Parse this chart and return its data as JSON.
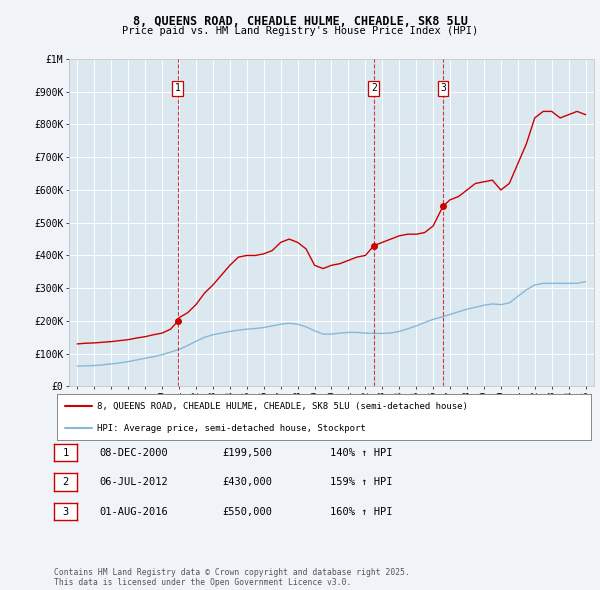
{
  "title": "8, QUEENS ROAD, CHEADLE HULME, CHEADLE, SK8 5LU",
  "subtitle": "Price paid vs. HM Land Registry's House Price Index (HPI)",
  "red_label": "8, QUEENS ROAD, CHEADLE HULME, CHEADLE, SK8 5LU (semi-detached house)",
  "blue_label": "HPI: Average price, semi-detached house, Stockport",
  "footer": "Contains HM Land Registry data © Crown copyright and database right 2025.\nThis data is licensed under the Open Government Licence v3.0.",
  "purchase_events": [
    {
      "label": "1",
      "date": 2000.92,
      "price": 199500,
      "date_str": "08-DEC-2000",
      "price_str": "£199,500",
      "hpi_str": "140% ↑ HPI"
    },
    {
      "label": "2",
      "date": 2012.5,
      "price": 430000,
      "date_str": "06-JUL-2012",
      "price_str": "£430,000",
      "hpi_str": "159% ↑ HPI"
    },
    {
      "label": "3",
      "date": 2016.58,
      "price": 550000,
      "date_str": "01-AUG-2016",
      "price_str": "£550,000",
      "hpi_str": "160% ↑ HPI"
    }
  ],
  "red_line": {
    "x": [
      1995.0,
      1995.5,
      1996.0,
      1996.5,
      1997.0,
      1997.5,
      1998.0,
      1998.5,
      1999.0,
      1999.5,
      2000.0,
      2000.5,
      2000.92,
      2001.0,
      2001.5,
      2002.0,
      2002.5,
      2003.0,
      2003.5,
      2004.0,
      2004.5,
      2005.0,
      2005.5,
      2006.0,
      2006.5,
      2007.0,
      2007.5,
      2008.0,
      2008.5,
      2009.0,
      2009.5,
      2010.0,
      2010.5,
      2011.0,
      2011.5,
      2012.0,
      2012.5,
      2013.0,
      2013.5,
      2014.0,
      2014.5,
      2015.0,
      2015.5,
      2016.0,
      2016.58,
      2017.0,
      2017.5,
      2018.0,
      2018.5,
      2019.0,
      2019.5,
      2020.0,
      2020.5,
      2021.0,
      2021.5,
      2022.0,
      2022.5,
      2023.0,
      2023.5,
      2024.0,
      2024.5,
      2025.0
    ],
    "y": [
      130000,
      132000,
      133000,
      135000,
      137000,
      140000,
      143000,
      148000,
      152000,
      158000,
      163000,
      175000,
      199500,
      210000,
      225000,
      250000,
      285000,
      310000,
      340000,
      370000,
      395000,
      400000,
      400000,
      405000,
      415000,
      440000,
      450000,
      440000,
      420000,
      370000,
      360000,
      370000,
      375000,
      385000,
      395000,
      400000,
      430000,
      440000,
      450000,
      460000,
      465000,
      465000,
      470000,
      490000,
      550000,
      570000,
      580000,
      600000,
      620000,
      625000,
      630000,
      600000,
      620000,
      680000,
      740000,
      820000,
      840000,
      840000,
      820000,
      830000,
      840000,
      830000
    ]
  },
  "blue_line": {
    "x": [
      1995.0,
      1995.5,
      1996.0,
      1996.5,
      1997.0,
      1997.5,
      1998.0,
      1998.5,
      1999.0,
      1999.5,
      2000.0,
      2000.5,
      2001.0,
      2001.5,
      2002.0,
      2002.5,
      2003.0,
      2003.5,
      2004.0,
      2004.5,
      2005.0,
      2005.5,
      2006.0,
      2006.5,
      2007.0,
      2007.5,
      2008.0,
      2008.5,
      2009.0,
      2009.5,
      2010.0,
      2010.5,
      2011.0,
      2011.5,
      2012.0,
      2012.5,
      2013.0,
      2013.5,
      2014.0,
      2014.5,
      2015.0,
      2015.5,
      2016.0,
      2016.5,
      2017.0,
      2017.5,
      2018.0,
      2018.5,
      2019.0,
      2019.5,
      2020.0,
      2020.5,
      2021.0,
      2021.5,
      2022.0,
      2022.5,
      2023.0,
      2023.5,
      2024.0,
      2024.5,
      2025.0
    ],
    "y": [
      62000,
      63000,
      64000,
      66000,
      69000,
      72000,
      76000,
      81000,
      86000,
      91000,
      97000,
      105000,
      113000,
      125000,
      138000,
      150000,
      158000,
      163000,
      168000,
      172000,
      175000,
      177000,
      180000,
      185000,
      190000,
      193000,
      190000,
      182000,
      170000,
      160000,
      160000,
      163000,
      165000,
      165000,
      163000,
      162000,
      162000,
      163000,
      168000,
      176000,
      185000,
      195000,
      205000,
      212000,
      220000,
      228000,
      236000,
      242000,
      248000,
      252000,
      250000,
      255000,
      275000,
      295000,
      310000,
      315000,
      315000,
      315000,
      315000,
      315000,
      320000
    ]
  },
  "ylim": [
    0,
    1000000
  ],
  "xlim": [
    1994.5,
    2025.5
  ],
  "yticks": [
    0,
    100000,
    200000,
    300000,
    400000,
    500000,
    600000,
    700000,
    800000,
    900000,
    1000000
  ],
  "ytick_labels": [
    "£0",
    "£100K",
    "£200K",
    "£300K",
    "£400K",
    "£500K",
    "£600K",
    "£700K",
    "£800K",
    "£900K",
    "£1M"
  ],
  "xtick_years": [
    1995,
    1996,
    1997,
    1998,
    1999,
    2000,
    2001,
    2002,
    2003,
    2004,
    2005,
    2006,
    2007,
    2008,
    2009,
    2010,
    2011,
    2012,
    2013,
    2014,
    2015,
    2016,
    2017,
    2018,
    2019,
    2020,
    2021,
    2022,
    2023,
    2024,
    2025
  ],
  "bg_color": "#f0f4f8",
  "plot_bg_color": "#dce8f0",
  "red_color": "#cc0000",
  "blue_color": "#88b8d8",
  "grid_color": "#ffffff"
}
